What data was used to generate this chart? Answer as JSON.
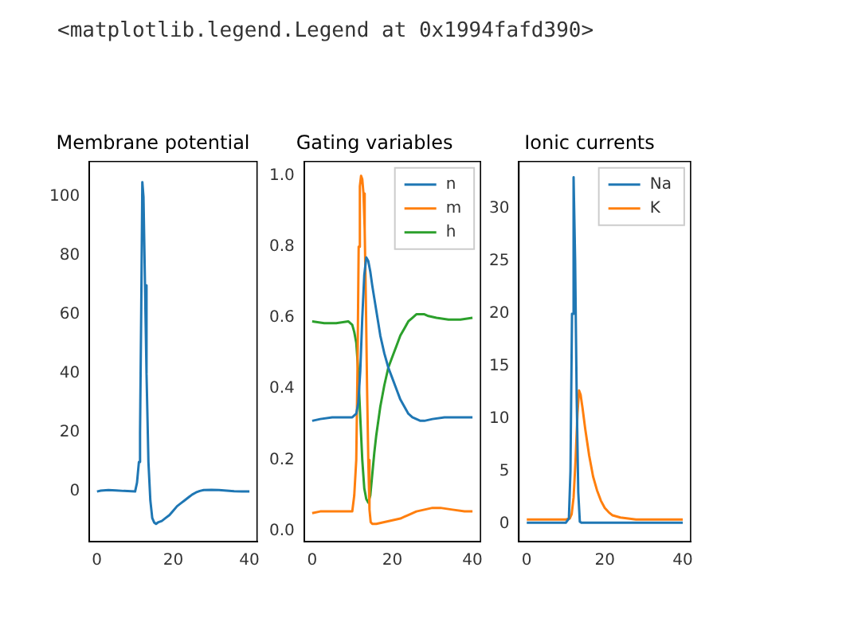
{
  "chart_data": [
    {
      "type": "line",
      "title": "Membrane potential",
      "annotations": [
        "<matplotlib.legend.Legend at 0x1994fafd390>"
      ],
      "xlim": [
        -2,
        42
      ],
      "xticks": [
        0,
        20,
        40
      ],
      "ylim": [
        -17,
        112
      ],
      "yticks": [
        0,
        20,
        40,
        60,
        80,
        100
      ],
      "grid": false,
      "legend": false,
      "series": [
        {
          "color": "#1f77b4",
          "x": [
            0,
            1,
            3,
            5,
            7,
            9,
            10,
            10.5,
            11,
            11.3,
            11.6,
            11.9,
            12.2,
            12.6,
            13,
            13.5,
            14,
            14.5,
            15,
            15.5,
            16,
            17,
            18,
            19,
            20,
            21,
            22,
            23,
            24,
            25,
            26,
            27,
            28,
            30,
            32,
            34,
            36,
            38,
            40
          ],
          "values": [
            0,
            0.3,
            0.5,
            0.4,
            0.2,
            0.1,
            0,
            3,
            10,
            20,
            60,
            105,
            100,
            70,
            40,
            10,
            -3,
            -9,
            -10.5,
            -11,
            -10.5,
            -10,
            -9,
            -8,
            -6.5,
            -5,
            -4,
            -3,
            -2,
            -1,
            -0.3,
            0.2,
            0.5,
            0.6,
            0.5,
            0.3,
            0.1,
            0,
            0
          ]
        }
      ]
    },
    {
      "type": "line",
      "title": "Gating variables",
      "xlim": [
        -2,
        42
      ],
      "xticks": [
        0,
        20,
        40
      ],
      "ylim": [
        -0.03,
        1.04
      ],
      "yticks": [
        {
          "value": 0,
          "label": "0.0"
        },
        {
          "value": 0.2,
          "label": "0.2"
        },
        {
          "value": 0.4,
          "label": "0.4"
        },
        {
          "value": 0.6,
          "label": "0.6"
        },
        {
          "value": 0.8,
          "label": "0.8"
        },
        {
          "value": 1,
          "label": "1.0"
        }
      ],
      "grid": false,
      "legend": "top right",
      "series": [
        {
          "name": "n",
          "color": "#1f77b4",
          "x": [
            0,
            2,
            5,
            8,
            10,
            11,
            11.5,
            12,
            12.5,
            13,
            13.5,
            14,
            14.5,
            15,
            16,
            17,
            18,
            19,
            20,
            21,
            22,
            23,
            24,
            25,
            26,
            27,
            28,
            30,
            33,
            36,
            40
          ],
          "values": [
            0.31,
            0.315,
            0.32,
            0.32,
            0.32,
            0.33,
            0.36,
            0.45,
            0.6,
            0.72,
            0.77,
            0.76,
            0.73,
            0.69,
            0.62,
            0.55,
            0.5,
            0.46,
            0.43,
            0.4,
            0.37,
            0.35,
            0.33,
            0.32,
            0.315,
            0.31,
            0.31,
            0.315,
            0.32,
            0.32,
            0.32
          ]
        },
        {
          "name": "m",
          "color": "#ff7f0e",
          "x": [
            0,
            2,
            5,
            8,
            10,
            10.5,
            11,
            11.3,
            11.6,
            11.9,
            12.2,
            12.5,
            12.8,
            13.1,
            13.4,
            13.7,
            14,
            14.3,
            14.6,
            15,
            16,
            18,
            20,
            22,
            24,
            26,
            28,
            30,
            32,
            35,
            38,
            40
          ],
          "values": [
            0.05,
            0.055,
            0.055,
            0.055,
            0.055,
            0.1,
            0.2,
            0.45,
            0.8,
            0.97,
            1.0,
            0.99,
            0.95,
            0.85,
            0.65,
            0.4,
            0.2,
            0.06,
            0.025,
            0.02,
            0.02,
            0.025,
            0.03,
            0.035,
            0.045,
            0.055,
            0.06,
            0.065,
            0.065,
            0.06,
            0.055,
            0.055
          ]
        },
        {
          "name": "h",
          "color": "#2ca02c",
          "x": [
            0,
            3,
            6,
            9,
            10,
            10.5,
            11,
            11.5,
            12,
            12.5,
            13,
            13.5,
            14,
            14.5,
            15,
            15.5,
            16,
            17,
            18,
            19,
            20,
            21,
            22,
            23,
            24,
            25,
            26,
            27,
            28,
            29,
            31,
            34,
            37,
            40
          ],
          "values": [
            0.59,
            0.585,
            0.585,
            0.59,
            0.58,
            0.56,
            0.53,
            0.45,
            0.32,
            0.2,
            0.12,
            0.09,
            0.08,
            0.1,
            0.16,
            0.22,
            0.27,
            0.35,
            0.41,
            0.46,
            0.49,
            0.52,
            0.55,
            0.57,
            0.59,
            0.6,
            0.61,
            0.61,
            0.61,
            0.605,
            0.6,
            0.595,
            0.595,
            0.6
          ]
        }
      ]
    },
    {
      "type": "line",
      "title": "Ionic currents",
      "xlim": [
        -2,
        42
      ],
      "xticks": [
        0,
        20,
        40
      ],
      "ylim": [
        -1.7,
        34.5
      ],
      "yticks": [
        0,
        5,
        10,
        15,
        20,
        25,
        30
      ],
      "grid": false,
      "legend": "top right",
      "series": [
        {
          "name": "Na",
          "color": "#1f77b4",
          "x": [
            0,
            5,
            10,
            10.8,
            11.2,
            11.6,
            12,
            12.4,
            12.8,
            13.2,
            13.6,
            14,
            20,
            30,
            40
          ],
          "values": [
            0.1,
            0.1,
            0.1,
            0.5,
            5,
            20,
            33,
            25,
            12,
            3,
            0.2,
            0.1,
            0.1,
            0.1,
            0.1
          ]
        },
        {
          "name": "K",
          "color": "#ff7f0e",
          "x": [
            0,
            5,
            10,
            11,
            11.5,
            12,
            12.5,
            13,
            13.4,
            13.8,
            14.3,
            15,
            16,
            17,
            18,
            19,
            20,
            21,
            22,
            24,
            26,
            28,
            32,
            36,
            40
          ],
          "values": [
            0.4,
            0.4,
            0.4,
            0.5,
            0.9,
            2.5,
            6,
            10.5,
            12.7,
            12.3,
            11,
            9,
            6.5,
            4.5,
            3.2,
            2.2,
            1.5,
            1.1,
            0.8,
            0.6,
            0.5,
            0.4,
            0.4,
            0.4,
            0.4
          ]
        }
      ]
    }
  ]
}
